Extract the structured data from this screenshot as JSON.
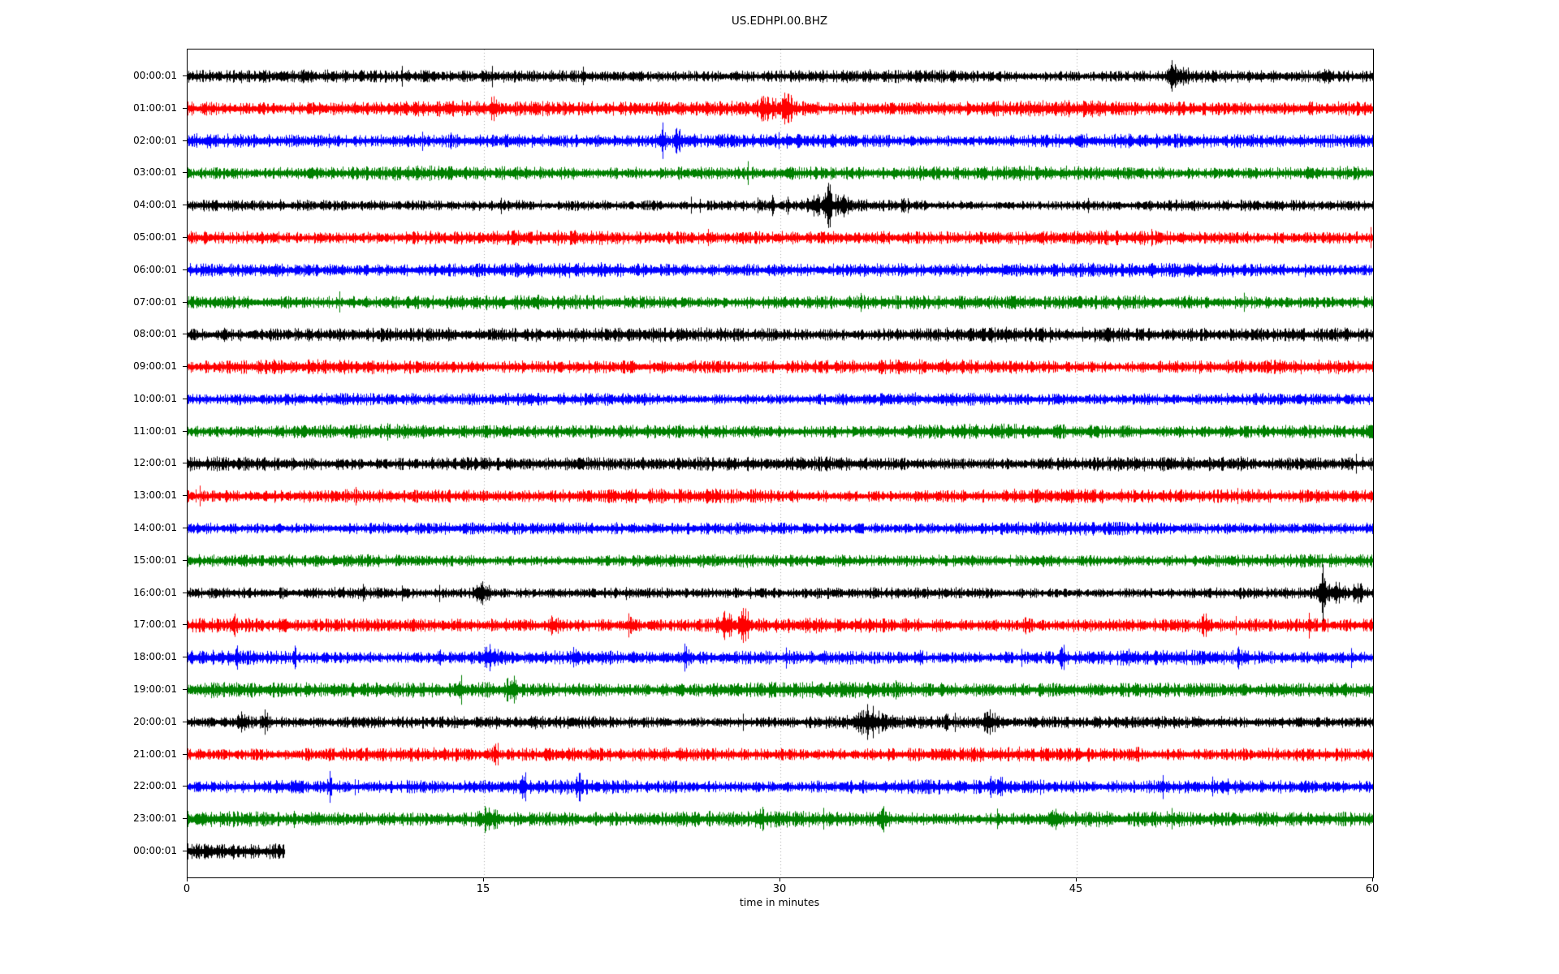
{
  "page": {
    "title": "US.EDHPI.00.BHZ"
  },
  "chart_data": {
    "type": "line",
    "subtype": "seismogram-helicorder-dayplot",
    "title": "US.EDHPI.00.BHZ",
    "xlabel": "time in minutes",
    "ylabel": "",
    "xlim": [
      0,
      60
    ],
    "xticks": [
      0,
      15,
      30,
      45,
      60
    ],
    "grid_minutes": [
      15,
      30,
      45
    ],
    "grid_style": "dotted",
    "grid_color": "#aaaaaa",
    "legend_position": "none",
    "trace_color_cycle": [
      "#000000",
      "#ff0000",
      "#0000ff",
      "#008000"
    ],
    "rows": [
      {
        "label": "00:00:01",
        "color": "#000000",
        "start_min": 0,
        "end_min": 60,
        "base_amp": 4.5,
        "events": [
          [
            49.8,
            2.2,
            0.15
          ],
          [
            50.2,
            1.2,
            0.3
          ],
          [
            57.6,
            1.2,
            0.2
          ]
        ]
      },
      {
        "label": "01:00:01",
        "color": "#ff0000",
        "start_min": 0,
        "end_min": 60,
        "base_amp": 5.5,
        "events": [
          [
            15.4,
            1.2,
            0.1
          ],
          [
            17.6,
            1.2,
            0.08
          ],
          [
            29.3,
            1.3,
            0.3
          ],
          [
            30.3,
            2.2,
            0.2
          ]
        ]
      },
      {
        "label": "02:00:01",
        "color": "#0000ff",
        "start_min": 0,
        "end_min": 60,
        "base_amp": 5.0,
        "events": [
          [
            24.0,
            2.6,
            0.12
          ],
          [
            24.8,
            1.8,
            0.12
          ]
        ]
      },
      {
        "label": "03:00:01",
        "color": "#008000",
        "start_min": 0,
        "end_min": 60,
        "base_amp": 5.0,
        "events": []
      },
      {
        "label": "04:00:01",
        "color": "#000000",
        "start_min": 0,
        "end_min": 60,
        "base_amp": 4.0,
        "events": [
          [
            29.6,
            2.2,
            0.05
          ],
          [
            30.4,
            1.8,
            0.05
          ],
          [
            31.7,
            2.2,
            0.2
          ],
          [
            32.4,
            4.5,
            0.12
          ],
          [
            33.0,
            1.4,
            0.3
          ],
          [
            36.2,
            1.2,
            0.05
          ]
        ]
      },
      {
        "label": "05:00:01",
        "color": "#ff0000",
        "start_min": 0,
        "end_min": 60,
        "base_amp": 5.0,
        "events": []
      },
      {
        "label": "06:00:01",
        "color": "#0000ff",
        "start_min": 0,
        "end_min": 60,
        "base_amp": 5.0,
        "events": []
      },
      {
        "label": "07:00:01",
        "color": "#008000",
        "start_min": 0,
        "end_min": 60,
        "base_amp": 5.0,
        "events": []
      },
      {
        "label": "08:00:01",
        "color": "#000000",
        "start_min": 0,
        "end_min": 60,
        "base_amp": 5.2,
        "events": []
      },
      {
        "label": "09:00:01",
        "color": "#ff0000",
        "start_min": 0,
        "end_min": 60,
        "base_amp": 5.0,
        "events": []
      },
      {
        "label": "10:00:01",
        "color": "#0000ff",
        "start_min": 0,
        "end_min": 60,
        "base_amp": 4.5,
        "events": []
      },
      {
        "label": "11:00:01",
        "color": "#008000",
        "start_min": 0,
        "end_min": 60,
        "base_amp": 5.0,
        "events": []
      },
      {
        "label": "12:00:01",
        "color": "#000000",
        "start_min": 0,
        "end_min": 60,
        "base_amp": 5.0,
        "events": []
      },
      {
        "label": "13:00:01",
        "color": "#ff0000",
        "start_min": 0,
        "end_min": 60,
        "base_amp": 5.0,
        "events": []
      },
      {
        "label": "14:00:01",
        "color": "#0000ff",
        "start_min": 0,
        "end_min": 60,
        "base_amp": 4.5,
        "events": []
      },
      {
        "label": "15:00:01",
        "color": "#008000",
        "start_min": 0,
        "end_min": 60,
        "base_amp": 4.5,
        "events": []
      },
      {
        "label": "16:00:01",
        "color": "#000000",
        "start_min": 0,
        "end_min": 60,
        "base_amp": 4.0,
        "events": [
          [
            8.8,
            1.2,
            0.1
          ],
          [
            10.9,
            1.8,
            0.05
          ],
          [
            14.9,
            2.2,
            0.25
          ],
          [
            57.4,
            4.8,
            0.15
          ],
          [
            58.2,
            1.6,
            0.3
          ],
          [
            59.2,
            1.8,
            0.15
          ]
        ]
      },
      {
        "label": "17:00:01",
        "color": "#ff0000",
        "start_min": 0,
        "end_min": 60,
        "base_amp": 5.0,
        "events": [
          [
            2.3,
            1.5,
            0.1
          ],
          [
            18.5,
            1.3,
            0.15
          ],
          [
            22.4,
            1.5,
            0.2
          ],
          [
            27.2,
            1.7,
            0.3
          ],
          [
            28.2,
            2.8,
            0.15
          ],
          [
            42.5,
            1.2,
            0.1
          ],
          [
            51.5,
            1.4,
            0.15
          ],
          [
            56.8,
            1.3,
            0.1
          ]
        ]
      },
      {
        "label": "18:00:01",
        "color": "#0000ff",
        "start_min": 0,
        "end_min": 60,
        "base_amp": 5.0,
        "events": [
          [
            2.5,
            1.6,
            0.06
          ],
          [
            5.4,
            1.8,
            0.05
          ],
          [
            12.8,
            1.4,
            0.06
          ],
          [
            15.3,
            1.7,
            0.25
          ],
          [
            19.6,
            1.4,
            0.1
          ],
          [
            25.2,
            1.4,
            0.1
          ],
          [
            37.0,
            1.3,
            0.1
          ],
          [
            44.3,
            1.4,
            0.1
          ],
          [
            53.2,
            1.3,
            0.1
          ]
        ]
      },
      {
        "label": "19:00:01",
        "color": "#008000",
        "start_min": 0,
        "end_min": 60,
        "base_amp": 5.5,
        "events": [
          [
            13.8,
            1.2,
            0.1
          ],
          [
            16.4,
            1.4,
            0.2
          ]
        ]
      },
      {
        "label": "20:00:01",
        "color": "#000000",
        "start_min": 0,
        "end_min": 60,
        "base_amp": 4.5,
        "events": [
          [
            2.8,
            1.4,
            0.15
          ],
          [
            3.9,
            1.4,
            0.1
          ],
          [
            12.4,
            2.0,
            0.04
          ],
          [
            34.5,
            1.9,
            0.5
          ],
          [
            38.4,
            1.8,
            0.06
          ],
          [
            40.6,
            1.7,
            0.25
          ],
          [
            46.0,
            1.3,
            0.1
          ]
        ]
      },
      {
        "label": "21:00:01",
        "color": "#ff0000",
        "start_min": 0,
        "end_min": 60,
        "base_amp": 5.0,
        "events": [
          [
            15.6,
            1.8,
            0.08
          ],
          [
            48.0,
            1.2,
            0.1
          ]
        ]
      },
      {
        "label": "22:00:01",
        "color": "#0000ff",
        "start_min": 0,
        "end_min": 60,
        "base_amp": 5.0,
        "events": [
          [
            7.2,
            2.4,
            0.06
          ],
          [
            17.0,
            1.4,
            0.1
          ],
          [
            19.8,
            1.3,
            0.08
          ],
          [
            40.7,
            1.4,
            0.1
          ],
          [
            41.1,
            2.6,
            0.07
          ],
          [
            49.3,
            1.3,
            0.08
          ]
        ]
      },
      {
        "label": "23:00:01",
        "color": "#008000",
        "start_min": 0,
        "end_min": 60,
        "base_amp": 5.5,
        "events": [
          [
            15.2,
            1.3,
            0.3
          ],
          [
            29.0,
            1.2,
            0.1
          ],
          [
            35.2,
            1.4,
            0.2
          ],
          [
            44.0,
            1.3,
            0.15
          ]
        ]
      },
      {
        "label": "00:00:01",
        "color": "#000000",
        "start_min": 0,
        "end_min": 4.9,
        "base_amp": 6.5,
        "events": []
      }
    ]
  }
}
